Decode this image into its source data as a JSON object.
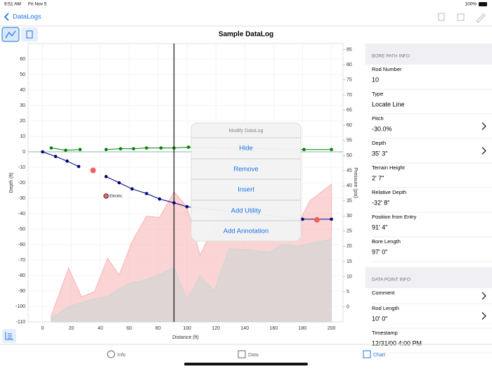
{
  "status_bar": {
    "time": "9:51 AM",
    "date": "Fri Nov 5",
    "battery": "100%"
  },
  "nav": {
    "back": "DataLogs"
  },
  "chart_data": {
    "type": "line",
    "title": "Sample DataLog",
    "xlabel": "Distance (ft)",
    "ylabel": "Depth (ft)",
    "y2label": "Pressure (psi)",
    "xlim": [
      -10,
      208
    ],
    "xticks": [
      0,
      20,
      40,
      60,
      80,
      100,
      120,
      140,
      160,
      180,
      200
    ],
    "ylim": [
      -110,
      70
    ],
    "yticks": [
      -110,
      -100,
      -90,
      -80,
      -70,
      -60,
      -50,
      -40,
      -30,
      -20,
      -10,
      0,
      10,
      20,
      30,
      40,
      50,
      60
    ],
    "y2lim": [
      -5,
      87
    ],
    "y2ticks": [
      0,
      5,
      10,
      15,
      20,
      25,
      30,
      35,
      40,
      45,
      50,
      55,
      60,
      65,
      70,
      75,
      80,
      85
    ],
    "grid": true,
    "cursor_x": 91,
    "series": [
      {
        "color": "#f7b3b3",
        "fill": true,
        "axis": "y2",
        "x": [
          6,
          18,
          27,
          36,
          45,
          53,
          62,
          72,
          81,
          91,
          100,
          109,
          119,
          129,
          138,
          147,
          157,
          166,
          176,
          185,
          200
        ],
        "values": [
          -3,
          12.8,
          3.3,
          5,
          16,
          10.5,
          21.6,
          30,
          29.5,
          38,
          33,
          17,
          27,
          34,
          35.6,
          31.4,
          34,
          31.6,
          26.5,
          35,
          40.5
        ]
      },
      {
        "color": "#c9d6d6",
        "fill": true,
        "axis": "y2",
        "x": [
          6,
          18,
          27,
          36,
          45,
          53,
          62,
          72,
          81,
          91,
          100,
          109,
          119,
          129,
          138,
          147,
          157,
          166,
          176,
          185,
          200
        ],
        "values": [
          -3.7,
          0,
          1.4,
          2.6,
          3.3,
          6,
          8,
          9,
          10.7,
          13,
          2.3,
          10.2,
          5.3,
          19.3,
          19,
          18.6,
          18,
          20.7,
          20,
          21,
          22.3
        ]
      },
      {
        "color": "#008000",
        "x": [
          6,
          16,
          26,
          35,
          44,
          54,
          63,
          72,
          82,
          91,
          101,
          181,
          200
        ],
        "values": [
          2.5,
          1,
          1.5,
          null,
          1.5,
          2,
          2,
          2.5,
          2.5,
          2.5,
          3,
          1.5,
          1.5
        ]
      },
      {
        "color": "#000080",
        "x": [
          0,
          9,
          17,
          25,
          35,
          44,
          53,
          62,
          72,
          81,
          91,
          100,
          180,
          200
        ],
        "values": [
          0,
          -3,
          -6,
          -9.5,
          null,
          -16,
          -20,
          -24,
          -27,
          -30.5,
          -33,
          -35.5,
          -43.6,
          -43.6
        ]
      },
      {
        "color": "#f06060",
        "line": false,
        "x": [
          35,
          190
        ],
        "values": [
          -12,
          -44
        ]
      }
    ],
    "annotations": [
      {
        "text": "Electric",
        "x": 44,
        "y": -28.6
      }
    ]
  },
  "popup": {
    "title": "Modify DataLog",
    "items": [
      "Hide",
      "Remove",
      "Insert",
      "Add Utility",
      "Add Annotation"
    ]
  },
  "side_panel": {
    "sections": [
      {
        "title": "BORE PATH INFO",
        "rows": [
          {
            "label": "Rod Number",
            "value": "10"
          },
          {
            "label": "Type",
            "value": "Locate Line"
          },
          {
            "label": "Pitch",
            "value": "-30.0%",
            "chevron": true
          },
          {
            "label": "Depth",
            "value": "35' 3\"",
            "chevron": true
          },
          {
            "label": "Terrain Height",
            "value": "2' 7\""
          },
          {
            "label": "Relative Depth",
            "value": "-32' 8\""
          },
          {
            "label": "Position from Entry",
            "value": "91' 4\""
          },
          {
            "label": "Bore Length",
            "value": "97' 0\""
          }
        ]
      },
      {
        "title": "DATA POINT INFO",
        "rows": [
          {
            "label": "Comment",
            "chevron": true
          },
          {
            "label": "Rod Length",
            "value": "10' 0\"",
            "chevron": true
          },
          {
            "label": "Timestamp",
            "value": "12/31/00 4:00 PM"
          }
        ]
      }
    ]
  },
  "tab_bar": {
    "tabs": [
      "Info",
      "Data",
      "Chart"
    ],
    "active": 2
  }
}
